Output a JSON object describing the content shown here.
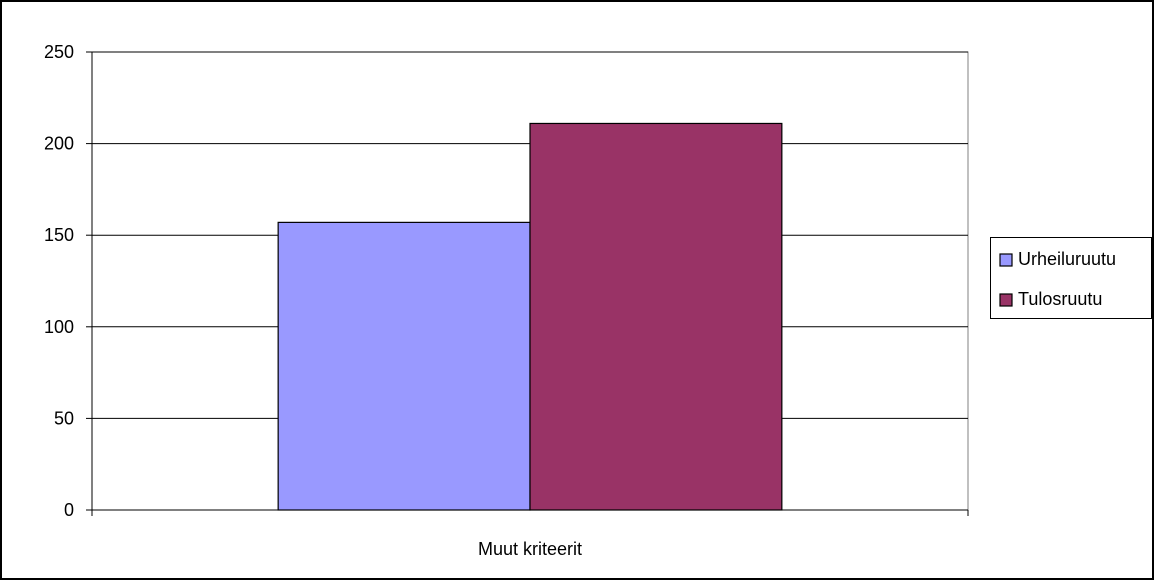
{
  "chart_data": {
    "type": "bar",
    "categories": [
      "Muut kriteerit"
    ],
    "series": [
      {
        "name": "Urheiluruutu",
        "values": [
          157
        ],
        "color": "#9999ff"
      },
      {
        "name": "Tulosruutu",
        "values": [
          211
        ],
        "color": "#993366"
      }
    ],
    "ylim": [
      0,
      250
    ],
    "yticks": [
      0,
      50,
      100,
      150,
      200,
      250
    ],
    "grid": true,
    "legend_position": "right"
  }
}
